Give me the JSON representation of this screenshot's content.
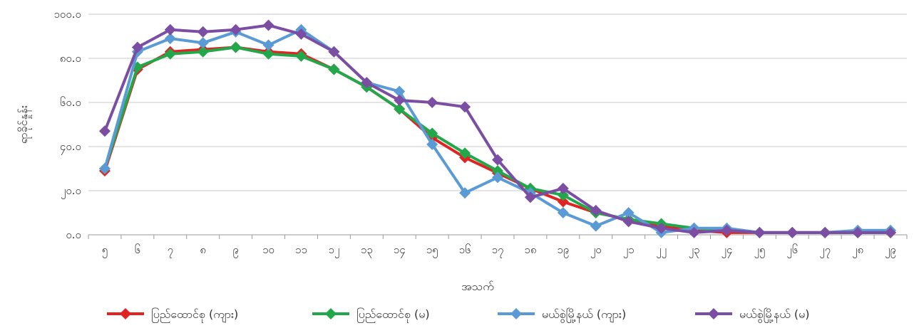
{
  "chart_data": {
    "type": "line",
    "title": "",
    "xlabel": "အသက်",
    "ylabel": "ရာခိုင်နှုန်း",
    "ylim": [
      0,
      100
    ],
    "yticks": [
      "၀.၀",
      "၂၀.၀",
      "၄၀.၀",
      "၆၀.၀",
      "၈၀.၀",
      "၁၀၀.၀"
    ],
    "categories": [
      "၅",
      "၆",
      "၇",
      "၈",
      "၉",
      "၁၀",
      "၁၁",
      "၁၂",
      "၁၃",
      "၁၄",
      "၁၅",
      "၁၆",
      "၁၇",
      "၁၈",
      "၁၉",
      "၂၀",
      "၂၁",
      "၂၂",
      "၂၃",
      "၂၄",
      "၂၅",
      "၂၆",
      "၂၇",
      "၂၈",
      "၂၉"
    ],
    "grid": true,
    "legend_position": "bottom",
    "series": [
      {
        "name": "ပြည်ထောင်စု (ကျား)",
        "color": "#e02424",
        "values": [
          29,
          75,
          83,
          84,
          85,
          83,
          82,
          75,
          67,
          57,
          44,
          35,
          28,
          21,
          15,
          10,
          7,
          4,
          2,
          1,
          1,
          1,
          1,
          1,
          1
        ]
      },
      {
        "name": "ပြည်ထောင်စု (မ)",
        "color": "#22a84a",
        "values": [
          30,
          76,
          82,
          83,
          85,
          82,
          81,
          75,
          67,
          57,
          46,
          37,
          29,
          21,
          18,
          10,
          7,
          5,
          3,
          2,
          1,
          1,
          1,
          1,
          1
        ]
      },
      {
        "name": "မယ်စွဲမြို့နယ် (ကျား)",
        "color": "#5b9bd5",
        "values": [
          30,
          83,
          89,
          87,
          92,
          86,
          93,
          83,
          69,
          65,
          41,
          19,
          26,
          19,
          10,
          4,
          10,
          1,
          3,
          3,
          1,
          1,
          1,
          2,
          2
        ]
      },
      {
        "name": "မယ်စွဲမြို့နယ် (မ)",
        "color": "#7b4ea3",
        "values": [
          47,
          85,
          93,
          92,
          93,
          95,
          91,
          83,
          69,
          61,
          60,
          58,
          34,
          17,
          21,
          11,
          6,
          3,
          1,
          2,
          1,
          1,
          1,
          1,
          1
        ]
      }
    ]
  }
}
